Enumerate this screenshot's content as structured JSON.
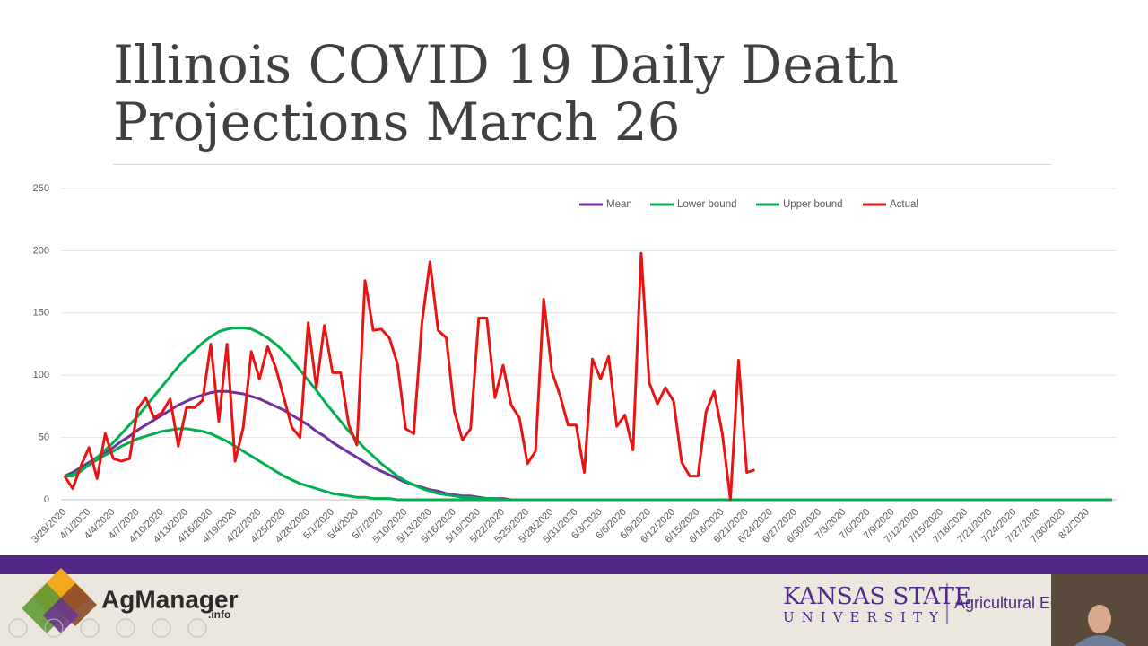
{
  "chart_data": {
    "type": "line",
    "title": "Illinois COVID 19 Daily Death Projections March 26",
    "categories": [
      "3/29/2020",
      null,
      null,
      "4/1/2020",
      null,
      null,
      "4/4/2020",
      null,
      null,
      "4/7/2020",
      null,
      null,
      "4/10/2020",
      null,
      null,
      "4/13/2020",
      null,
      null,
      "4/16/2020",
      null,
      null,
      "4/19/2020",
      null,
      null,
      "4/22/2020",
      null,
      null,
      "4/25/2020",
      null,
      null,
      "4/28/2020",
      null,
      null,
      "5/1/2020",
      null,
      null,
      "5/4/2020",
      null,
      null,
      "5/7/2020",
      null,
      null,
      "5/10/2020",
      null,
      null,
      "5/13/2020",
      null,
      null,
      "5/16/2020",
      null,
      null,
      "5/19/2020",
      null,
      null,
      "5/22/2020",
      null,
      null,
      "5/25/2020",
      null,
      null,
      "5/28/2020",
      null,
      null,
      "5/31/2020",
      null,
      null,
      "6/3/2020",
      null,
      null,
      "6/6/2020",
      null,
      null,
      "6/9/2020",
      null,
      null,
      "6/12/2020",
      null,
      null,
      "6/15/2020",
      null,
      null,
      "6/18/2020",
      null,
      null,
      "6/21/2020",
      null,
      null,
      "6/24/2020",
      null,
      null,
      "6/27/2020",
      null,
      null,
      "6/30/2020",
      null,
      null,
      "7/3/2020",
      null,
      null,
      "7/6/2020",
      null,
      null,
      "7/9/2020",
      null,
      null,
      "7/12/2020",
      null,
      null,
      "7/15/2020",
      null,
      null,
      "7/18/2020",
      null,
      null,
      "7/21/2020",
      null,
      null,
      "7/24/2020",
      null,
      null,
      "7/27/2020",
      null,
      null,
      "7/30/2020",
      null,
      null,
      "8/2/2020",
      null,
      null,
      null
    ],
    "series": [
      {
        "name": "Mean",
        "color": "#7030a0",
        "values": [
          19,
          22,
          26,
          30,
          34,
          38,
          42,
          47,
          51,
          56,
          60,
          64,
          68,
          72,
          76,
          79,
          82,
          84,
          86,
          87,
          87,
          86,
          85,
          83,
          81,
          78,
          75,
          72,
          68,
          64,
          60,
          55,
          51,
          46,
          42,
          38,
          34,
          30,
          26,
          23,
          20,
          17,
          14,
          12,
          10,
          8,
          7,
          5,
          4,
          3,
          3,
          2,
          1,
          1,
          1,
          0,
          0,
          0,
          0,
          0,
          0,
          0,
          0,
          0,
          0,
          0,
          0,
          0,
          0,
          0,
          0,
          0,
          0,
          0,
          0,
          0,
          0,
          0,
          0,
          0,
          0,
          0,
          0,
          0,
          0,
          0,
          0,
          0,
          0,
          0,
          0,
          0,
          0,
          0,
          0,
          0,
          0,
          0,
          0,
          0,
          0,
          0,
          0,
          0,
          0,
          0,
          0,
          0,
          0,
          0,
          0,
          0,
          0,
          0,
          0,
          0,
          0,
          0,
          0,
          0,
          0,
          0,
          0,
          0,
          0,
          0,
          0,
          0,
          0,
          0
        ]
      },
      {
        "name": "Lower bound",
        "color": "#00b050",
        "values": [
          19,
          20,
          24,
          28,
          32,
          36,
          39,
          43,
          46,
          49,
          51,
          53,
          55,
          56,
          57,
          57,
          56,
          55,
          53,
          50,
          47,
          43,
          39,
          35,
          31,
          27,
          23,
          19,
          16,
          13,
          11,
          9,
          7,
          5,
          4,
          3,
          2,
          2,
          1,
          1,
          1,
          0,
          0,
          0,
          0,
          0,
          0,
          0,
          0,
          0,
          0,
          0,
          0,
          0,
          0,
          0,
          0,
          0,
          0,
          0,
          0,
          0,
          0,
          0,
          0,
          0,
          0,
          0,
          0,
          0,
          0,
          0,
          0,
          0,
          0,
          0,
          0,
          0,
          0,
          0,
          0,
          0,
          0,
          0,
          0,
          0,
          0,
          0,
          0,
          0,
          0,
          0,
          0,
          0,
          0,
          0,
          0,
          0,
          0,
          0,
          0,
          0,
          0,
          0,
          0,
          0,
          0,
          0,
          0,
          0,
          0,
          0,
          0,
          0,
          0,
          0,
          0,
          0,
          0,
          0,
          0,
          0,
          0,
          0,
          0,
          0,
          0,
          0,
          0,
          0
        ]
      },
      {
        "name": "Upper bound",
        "color": "#00b050",
        "values": [
          19,
          19,
          23,
          28,
          34,
          40,
          46,
          53,
          60,
          67,
          75,
          83,
          91,
          99,
          107,
          114,
          120,
          126,
          131,
          135,
          137,
          138,
          138,
          137,
          134,
          130,
          125,
          119,
          112,
          104,
          96,
          88,
          79,
          71,
          63,
          55,
          48,
          41,
          35,
          29,
          24,
          19,
          15,
          12,
          9,
          7,
          5,
          4,
          3,
          2,
          2,
          1,
          1,
          1,
          0,
          0,
          0,
          0,
          0,
          0,
          0,
          0,
          0,
          0,
          0,
          0,
          0,
          0,
          0,
          0,
          0,
          0,
          0,
          0,
          0,
          0,
          0,
          0,
          0,
          0,
          0,
          0,
          0,
          0,
          0,
          0,
          0,
          0,
          0,
          0,
          0,
          0,
          0,
          0,
          0,
          0,
          0,
          0,
          0,
          0,
          0,
          0,
          0,
          0,
          0,
          0,
          0,
          0,
          0,
          0,
          0,
          0,
          0,
          0,
          0,
          0,
          0,
          0,
          0,
          0,
          0,
          0,
          0,
          0,
          0,
          0,
          0,
          0,
          0,
          0
        ]
      },
      {
        "name": "Actual",
        "color": "#e81414",
        "values": [
          19,
          9,
          27,
          42,
          17,
          53,
          33,
          31,
          33,
          73,
          82,
          66,
          70,
          81,
          43,
          74,
          74,
          80,
          125,
          63,
          125,
          31,
          58,
          119,
          97,
          123,
          106,
          82,
          58,
          50,
          142,
          90,
          140,
          102,
          102,
          60,
          44,
          176,
          136,
          137,
          130,
          109,
          57,
          53,
          142,
          191,
          136,
          130,
          71,
          48,
          57,
          146,
          146,
          82,
          108,
          76,
          66,
          29,
          39,
          161,
          103,
          84,
          60,
          60,
          22,
          113,
          97,
          115,
          59,
          68,
          40,
          198,
          94,
          77,
          90,
          79,
          30,
          19,
          19,
          71,
          87,
          53,
          0,
          112,
          22,
          24,
          null,
          null,
          null,
          null,
          null,
          null,
          null,
          null,
          null,
          null,
          null,
          null,
          null,
          null,
          null,
          null,
          null,
          null,
          null,
          null,
          null,
          null,
          null,
          null,
          null,
          null,
          null,
          null,
          null,
          null,
          null,
          null,
          null,
          null,
          null,
          null,
          null,
          null,
          null,
          null,
          null,
          null,
          null,
          null
        ]
      }
    ],
    "ylim": [
      0,
      250
    ],
    "yticks": [
      0,
      50,
      100,
      150,
      200,
      250
    ],
    "grid": true,
    "legend": "top"
  },
  "footer": {
    "logo": "AgManager",
    "logo_suffix": ".info",
    "university": "KANSAS STATE",
    "university_sub": "UNIVERSITY",
    "department": "Agricultural Ec"
  }
}
